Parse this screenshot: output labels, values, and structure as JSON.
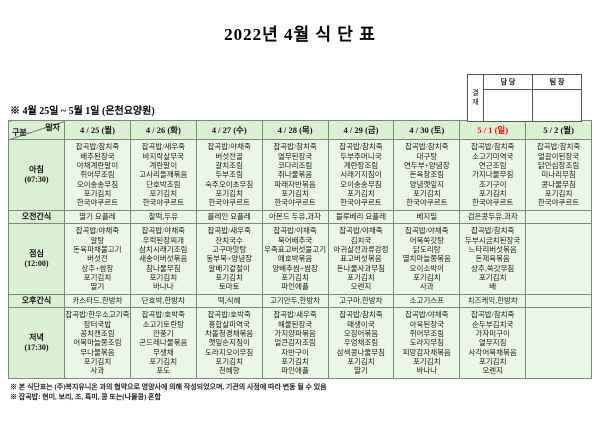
{
  "title": "2022년 4월 식 단 표",
  "approval": {
    "label": "결재",
    "columns": [
      "담 당",
      "팀 장"
    ]
  },
  "subtitle": "※ 4월 25일 ~ 5월 1일 (은천요양원)",
  "colors": {
    "sunday_red": "#ff0000",
    "header_bg": "#dcefd4",
    "cell_bg": "#ecf6e6",
    "border": "#7b8b77"
  },
  "table": {
    "corner": {
      "top": "일자",
      "bottom": "구분"
    },
    "date_headers": [
      {
        "label": "4 / 25 (월)"
      },
      {
        "label": "4 / 26 (화)"
      },
      {
        "label": "4 / 27 (수)"
      },
      {
        "label": "4 / 28 (목)"
      },
      {
        "label": "4 / 29 (금)"
      },
      {
        "label": "4 / 30 (토)"
      },
      {
        "label": "5 / 1 (일)",
        "color": "#ff0000"
      },
      {
        "label": "5 / 2 (월)"
      }
    ],
    "rows": [
      {
        "type": "meal",
        "label": "아침",
        "time": "(07:30)",
        "cells": [
          [
            "잡곡밥/참치죽",
            "배추된장국",
            "야채계란말이",
            "쥐어무조림",
            "오이송송무침",
            "포기김치",
            "한국야쿠르트"
          ],
          [
            "잡곡밥/새우죽",
            "바지락살무국",
            "계란말이",
            "고사리들깨볶음",
            "단호박조림",
            "포기김치",
            "한국야쿠르트"
          ],
          [
            "잡곡밥/야채죽",
            "버섯전골",
            "갈치조림",
            "두부조림",
            "숙주오이초무침",
            "포기김치",
            "한국야쿠르트"
          ],
          [
            "잡곡밥/참치죽",
            "열무된장국",
            "코다리조림",
            "취나물볶음",
            "파래자반볶음",
            "포기김치",
            "한국야쿠르트"
          ],
          [
            "잡곡밥/참치죽",
            "두부주머니국",
            "계란장조림",
            "시래기지짐이",
            "오이송송무침",
            "포기김치",
            "한국야쿠르트"
          ],
          [
            "잡곡밥/참치죽",
            "대구탕",
            "연두부+양념장",
            "돈육장조림",
            "양념깻잎지",
            "포기김치",
            "한국야쿠르트"
          ],
          [
            "잡곡밥/참치죽",
            "소고기미역국",
            "연근조림",
            "가지나물무침",
            "조기구이",
            "포기김치",
            "한국야쿠르트"
          ],
          [
            "잡곡밥/참치죽",
            "얼갈이된장국",
            "닭안심장조림",
            "미나리무침",
            "콩나물무침",
            "포기김치",
            "한국야쿠르트"
          ]
        ]
      },
      {
        "type": "snack",
        "label": "오전간식",
        "cells": [
          "딸기 요플레",
          "찰떡,두유",
          "플레인 요플레",
          "아몬드 두유,과자",
          "블루베리 요플레",
          "베지밀",
          "검은콩두유,과자",
          ""
        ]
      },
      {
        "type": "meal",
        "label": "점심",
        "time": "(12:00)",
        "cells": [
          [
            "잡곡밥/야채죽",
            "알탕",
            "돈육파채불고기",
            "버섯전",
            "상추+쌈장",
            "포기김치",
            "딸기"
          ],
          [
            "잡곡밥/야채죽",
            "우럭된장찌개",
            "삼치시래기조림",
            "새송이버섯볶음",
            "참나물무침",
            "포기김치",
            "바나나"
          ],
          [
            "잡곡밥/새우죽",
            "잔치국수",
            "고구마맛탕",
            "동부묵+양념장",
            "알배기겉절이",
            "포기김치",
            "토마토"
          ],
          [
            "잡곡밥/야채죽",
            "북어배추국",
            "우족표고버섯불고기",
            "애호박볶음",
            "양배추쌈+쌈장",
            "포기김치",
            "파인애플"
          ],
          [
            "잡곡밥/야채죽",
            "김치국",
            "아귀살전과류강정",
            "표고버섯볶음",
            "돈나물사과무침",
            "포기김치",
            "오렌지"
          ],
          [
            "잡곡밥/야채죽",
            "어묵쑥갓탕",
            "닭도리탕",
            "멸치마늘쫑볶음",
            "오이소박이",
            "포기김치",
            "사과"
          ],
          [
            "잡곡밥/참치죽",
            "두부시금치된장국",
            "느타리버섯볶음",
            "돈제육볶음",
            "상추,쑥갓무침",
            "포기김치",
            "배"
          ],
          []
        ]
      },
      {
        "type": "snack",
        "label": "오후간식",
        "cells": [
          "카스타드,한방차",
          "단호박,한방차",
          "떡,식혜",
          "고기만두,한방차",
          "고구마,한방차",
          "소고기스프",
          "치즈케익,한방차",
          ""
        ]
      },
      {
        "type": "meal",
        "label": "저녁",
        "time": "(17:30)",
        "cells": [
          [
            "잡곡밥/한우소고기죽",
            "장터국밥",
            "꽁치캔조림",
            "어묵마늘쫑조림",
            "무나물볶음",
            "포기김치",
            "사과"
          ],
          [
            "잡곡밥/호박죽",
            "소고기토란탕",
            "깐풍기",
            "곤드레나물볶음",
            "무생채",
            "포기김치",
            "포도"
          ],
          [
            "잡곡밥/호박죽",
            "홍합살미역국",
            "차돌청경채볶음",
            "깻잎순지짐이",
            "도라지오이무침",
            "포기김치",
            "천혜향"
          ],
          [
            "잡곡밥/새우죽",
            "해물된장국",
            "가지양파볶음",
            "얼큰감자조림",
            "자반구이",
            "포기김치",
            "파인애플"
          ],
          [
            "잡곡밥/참치죽",
            "매생이국",
            "오징어볶음",
            "우엉채조림",
            "삼색콩나물무침",
            "포기김치",
            "딸기"
          ],
          [
            "잡곡밥/야채죽",
            "아욱된장국",
            "쥐어무조림",
            "도라지무침",
            "피망감자채볶음",
            "포기김치",
            "바나나"
          ],
          [
            "잡곡밥/참치죽",
            "순두부김치국",
            "가자미구이",
            "열무지짐",
            "사각어묵채볶음",
            "포기김치",
            "오렌지"
          ],
          []
        ]
      }
    ]
  },
  "footnotes": [
    "※ 본 식단표는 (주)복지유니온 과의 협약으로 영양사에 의해 작성되었으며, 기관의 사정에 따라 변동 될 수 있음",
    "※ 잡곡밥: 현미, 보리, 조, 흑미, 콩 또는(나물콩) 혼합"
  ]
}
